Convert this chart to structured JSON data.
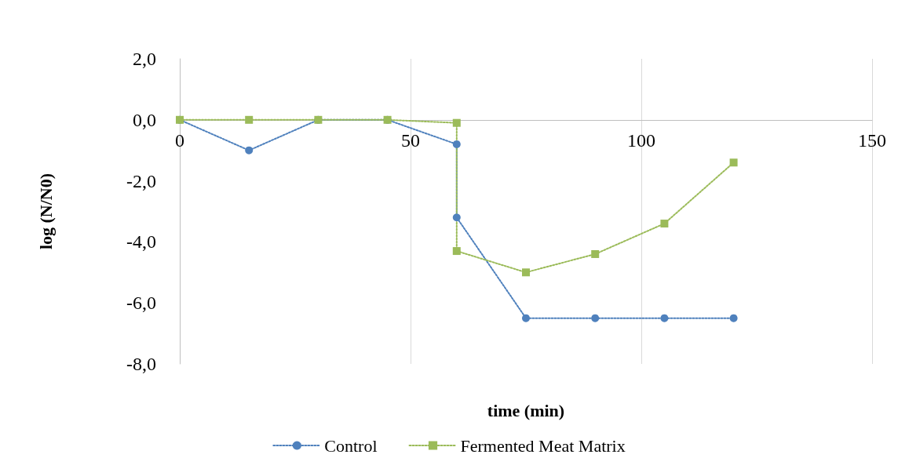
{
  "chart_data": {
    "type": "line",
    "xlabel": "time (min)",
    "ylabel": "log (N/N0)",
    "x": [
      0,
      15,
      30,
      45,
      60,
      60,
      75,
      90,
      105,
      120
    ],
    "series": [
      {
        "name": "Control",
        "color": "#4f81bd",
        "marker": "circle",
        "values": [
          0,
          -1.0,
          0,
          0,
          -0.8,
          -3.2,
          -6.5,
          -6.5,
          -6.5,
          -6.5
        ]
      },
      {
        "name": "Fermented Meat Matrix",
        "color": "#9bbb59",
        "marker": "square",
        "values": [
          0,
          0,
          0,
          0,
          -0.1,
          -4.3,
          -5.0,
          -4.4,
          -3.4,
          -1.4
        ]
      }
    ],
    "xlim": [
      0,
      150
    ],
    "xticks": [
      0,
      50,
      100,
      150
    ],
    "ylim": [
      -8,
      2
    ],
    "yticks": [
      {
        "value": -8,
        "label": "-8,0"
      },
      {
        "value": -6,
        "label": "-6,0"
      },
      {
        "value": -4,
        "label": "-4,0"
      },
      {
        "value": -2,
        "label": "-2,0"
      },
      {
        "value": 0,
        "label": "0,0"
      },
      {
        "value": 2,
        "label": "2,0"
      }
    ],
    "grid": "x",
    "legend": "bottom",
    "line_style": "dotted"
  }
}
